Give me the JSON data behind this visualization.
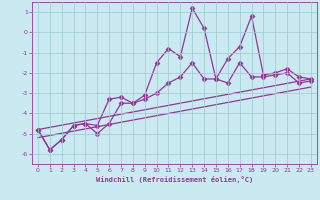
{
  "xlabel": "Windchill (Refroidissement éolien,°C)",
  "xlim": [
    -0.5,
    23.5
  ],
  "ylim": [
    -6.5,
    1.5
  ],
  "yticks": [
    1,
    0,
    -1,
    -2,
    -3,
    -4,
    -5,
    -6
  ],
  "xticks": [
    0,
    1,
    2,
    3,
    4,
    5,
    6,
    7,
    8,
    9,
    10,
    11,
    12,
    13,
    14,
    15,
    16,
    17,
    18,
    19,
    20,
    21,
    22,
    23
  ],
  "bg_color": "#c8eaf0",
  "grid_color": "#a0c8d0",
  "line_color": "#993399",
  "series": [
    {
      "x": [
        0,
        1,
        2,
        3,
        4,
        5,
        6,
        7,
        8,
        9,
        10,
        11,
        12,
        13,
        14,
        15,
        16,
        17,
        18,
        19,
        20,
        21,
        22,
        23
      ],
      "y": [
        -4.8,
        -5.8,
        -5.3,
        -4.6,
        -4.5,
        -4.6,
        -3.3,
        -3.2,
        -3.5,
        -3.1,
        -1.5,
        -0.8,
        -1.2,
        1.2,
        0.2,
        -2.3,
        -1.3,
        -0.7,
        0.8,
        -2.1,
        -2.0,
        -1.8,
        -2.2,
        -2.3
      ],
      "marker": "D",
      "markersize": 2.5,
      "linewidth": 0.9,
      "linestyle": "-"
    },
    {
      "x": [
        0,
        1,
        2,
        3,
        4,
        5,
        6,
        7,
        8,
        9,
        10,
        11,
        12,
        13,
        14,
        15,
        16,
        17,
        18,
        19,
        20,
        21,
        22,
        23
      ],
      "y": [
        -4.8,
        -5.8,
        -5.3,
        -4.6,
        -4.5,
        -5.0,
        -4.5,
        -3.5,
        -3.5,
        -3.3,
        -3.0,
        -2.5,
        -2.2,
        -1.5,
        -2.3,
        -2.3,
        -2.5,
        -1.5,
        -2.2,
        -2.2,
        -2.1,
        -2.0,
        -2.5,
        -2.4
      ],
      "marker": "D",
      "markersize": 2.5,
      "linewidth": 0.9,
      "linestyle": "-"
    },
    {
      "x": [
        0,
        23
      ],
      "y": [
        -4.8,
        -2.3
      ],
      "marker": null,
      "markersize": 0,
      "linewidth": 0.9,
      "linestyle": "-"
    },
    {
      "x": [
        0,
        23
      ],
      "y": [
        -5.2,
        -2.7
      ],
      "marker": null,
      "markersize": 0,
      "linewidth": 0.9,
      "linestyle": "-"
    }
  ]
}
